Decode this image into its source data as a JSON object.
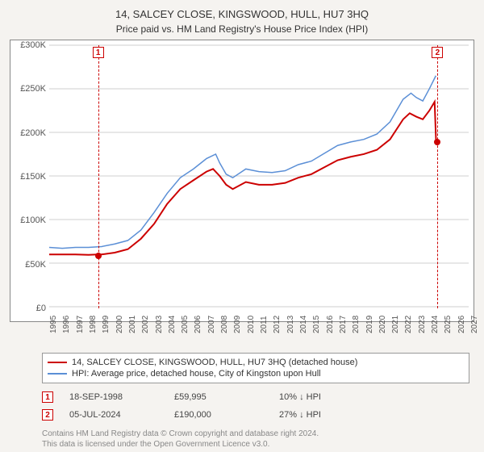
{
  "title": "14, SALCEY CLOSE, KINGSWOOD, HULL, HU7 3HQ",
  "subtitle": "Price paid vs. HM Land Registry's House Price Index (HPI)",
  "chart": {
    "type": "line",
    "background_color": "#ffffff",
    "page_background": "#f5f3f0",
    "grid_color": "#cfcfcf",
    "axis_color": "#888888",
    "ylabel_fontsize": 11,
    "xlabel_fontsize": 10,
    "xlabel_rotation": -90,
    "ylim": [
      0,
      300000
    ],
    "ytick_step": 50000,
    "ytick_labels": [
      "£0",
      "£50K",
      "£100K",
      "£150K",
      "£200K",
      "£250K",
      "£300K"
    ],
    "xlim": [
      1995,
      2027
    ],
    "xtick_step": 1,
    "xtick_labels": [
      "1995",
      "1996",
      "1997",
      "1998",
      "1999",
      "2000",
      "2001",
      "2002",
      "2003",
      "2004",
      "2005",
      "2006",
      "2007",
      "2008",
      "2009",
      "2010",
      "2011",
      "2012",
      "2013",
      "2014",
      "2015",
      "2016",
      "2017",
      "2018",
      "2019",
      "2020",
      "2021",
      "2022",
      "2023",
      "2024",
      "2025",
      "2026",
      "2027"
    ],
    "series": [
      {
        "name": "14, SALCEY CLOSE, KINGSWOOD, HULL, HU7 3HQ (detached house)",
        "color": "#cc0000",
        "line_width": 2,
        "data": [
          [
            1995,
            60000
          ],
          [
            1996,
            60000
          ],
          [
            1997,
            60000
          ],
          [
            1998,
            59500
          ],
          [
            1998.72,
            59995
          ],
          [
            1999,
            60000
          ],
          [
            2000,
            62000
          ],
          [
            2001,
            66000
          ],
          [
            2002,
            78000
          ],
          [
            2003,
            95000
          ],
          [
            2004,
            118000
          ],
          [
            2005,
            135000
          ],
          [
            2006,
            145000
          ],
          [
            2007,
            155000
          ],
          [
            2007.5,
            158000
          ],
          [
            2008,
            150000
          ],
          [
            2008.5,
            140000
          ],
          [
            2009,
            135000
          ],
          [
            2010,
            143000
          ],
          [
            2011,
            140000
          ],
          [
            2012,
            140000
          ],
          [
            2013,
            142000
          ],
          [
            2014,
            148000
          ],
          [
            2015,
            152000
          ],
          [
            2016,
            160000
          ],
          [
            2017,
            168000
          ],
          [
            2018,
            172000
          ],
          [
            2019,
            175000
          ],
          [
            2020,
            180000
          ],
          [
            2021,
            192000
          ],
          [
            2022,
            215000
          ],
          [
            2022.5,
            222000
          ],
          [
            2023,
            218000
          ],
          [
            2023.5,
            215000
          ],
          [
            2024,
            225000
          ],
          [
            2024.4,
            235000
          ],
          [
            2024.51,
            190000
          ]
        ]
      },
      {
        "name": "HPI: Average price, detached house, City of Kingston upon Hull",
        "color": "#5b8fd6",
        "line_width": 1.5,
        "data": [
          [
            1995,
            68000
          ],
          [
            1996,
            67000
          ],
          [
            1997,
            68000
          ],
          [
            1998,
            68000
          ],
          [
            1999,
            69000
          ],
          [
            2000,
            72000
          ],
          [
            2001,
            76000
          ],
          [
            2002,
            88000
          ],
          [
            2003,
            108000
          ],
          [
            2004,
            130000
          ],
          [
            2005,
            148000
          ],
          [
            2006,
            158000
          ],
          [
            2007,
            170000
          ],
          [
            2007.7,
            175000
          ],
          [
            2008,
            165000
          ],
          [
            2008.5,
            152000
          ],
          [
            2009,
            148000
          ],
          [
            2010,
            158000
          ],
          [
            2011,
            155000
          ],
          [
            2012,
            154000
          ],
          [
            2013,
            156000
          ],
          [
            2014,
            163000
          ],
          [
            2015,
            167000
          ],
          [
            2016,
            176000
          ],
          [
            2017,
            185000
          ],
          [
            2018,
            189000
          ],
          [
            2019,
            192000
          ],
          [
            2020,
            198000
          ],
          [
            2021,
            212000
          ],
          [
            2022,
            238000
          ],
          [
            2022.6,
            245000
          ],
          [
            2023,
            240000
          ],
          [
            2023.5,
            236000
          ],
          [
            2024,
            250000
          ],
          [
            2024.5,
            265000
          ]
        ]
      }
    ],
    "markers": [
      {
        "id": "1",
        "x": 1998.72,
        "y": 59995,
        "dashed_color": "#cc0000",
        "box_border": "#cc0000"
      },
      {
        "id": "2",
        "x": 2024.51,
        "y": 190000,
        "dashed_color": "#cc0000",
        "box_border": "#cc0000"
      }
    ]
  },
  "legend": {
    "items": [
      {
        "color": "#cc0000",
        "label": "14, SALCEY CLOSE, KINGSWOOD, HULL, HU7 3HQ (detached house)"
      },
      {
        "color": "#5b8fd6",
        "label": "HPI: Average price, detached house, City of Kingston upon Hull"
      }
    ]
  },
  "annotations": [
    {
      "id": "1",
      "date": "18-SEP-1998",
      "price": "£59,995",
      "delta": "10% ↓ HPI"
    },
    {
      "id": "2",
      "date": "05-JUL-2024",
      "price": "£190,000",
      "delta": "27% ↓ HPI"
    }
  ],
  "footer": {
    "line1": "Contains HM Land Registry data © Crown copyright and database right 2024.",
    "line2": "This data is licensed under the Open Government Licence v3.0."
  }
}
